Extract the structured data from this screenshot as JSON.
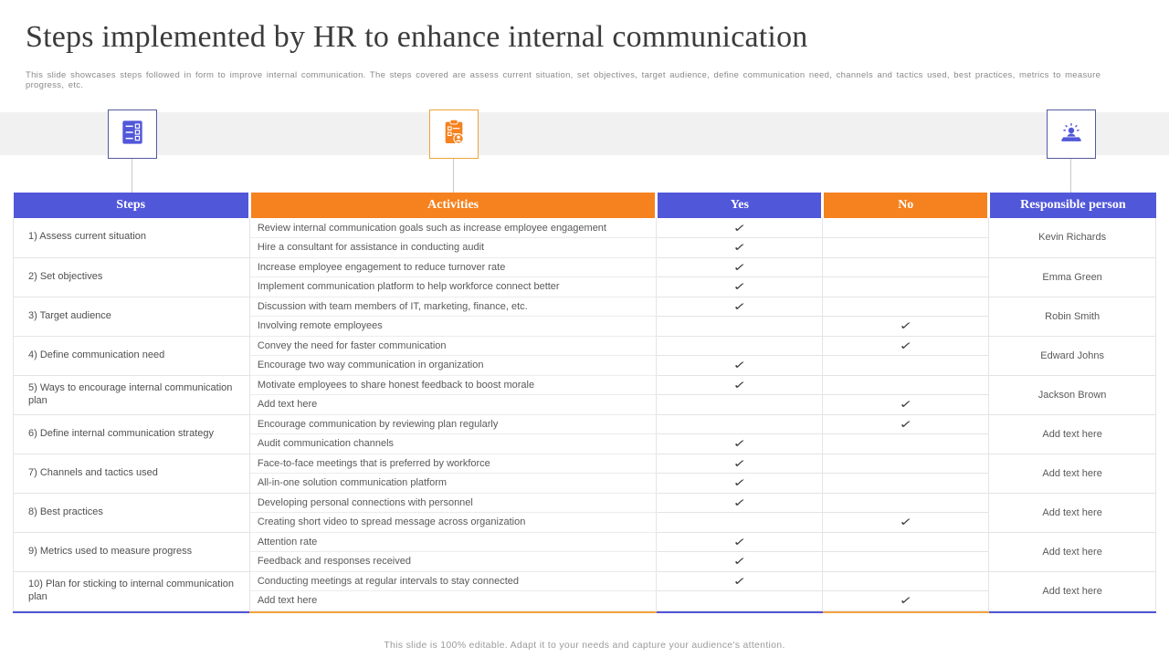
{
  "slide": {
    "title": "Steps implemented by HR to enhance internal communication",
    "subtitle": "This slide showcases steps followed in form to improve internal communication. The steps covered are assess current situation, set objectives, target audience, define communication need, channels and tactics used, best practices, metrics to measure progress, etc.",
    "footer": "This slide is 100% editable. Adapt it to your needs and capture your audience's attention."
  },
  "colors": {
    "purple": "#5157d9",
    "orange": "#f5821f",
    "band_gray": "#f1f1f2",
    "check": "#3d3d3d",
    "stripe_orange": "#f5a23f"
  },
  "icons": [
    {
      "name": "checklist-icon",
      "color": "purple"
    },
    {
      "name": "clipboard-user-icon",
      "color": "orange"
    },
    {
      "name": "presenter-alert-icon",
      "color": "purple"
    }
  ],
  "table": {
    "headers": [
      "Steps",
      "Activities",
      "Yes",
      "No",
      "Responsible person"
    ],
    "check_glyph": "✓",
    "rows": [
      {
        "step": "1) Assess current situation",
        "person": "Kevin Richards",
        "activities": [
          {
            "text": "Review internal communication goals such as increase employee engagement",
            "answer": "yes"
          },
          {
            "text": "Hire a consultant for assistance in conducting audit",
            "answer": "yes"
          }
        ]
      },
      {
        "step": "2) Set objectives",
        "person": "Emma Green",
        "activities": [
          {
            "text": "Increase employee engagement to reduce turnover rate",
            "answer": "yes"
          },
          {
            "text": "Implement communication platform to help workforce connect better",
            "answer": "yes"
          }
        ]
      },
      {
        "step": "3) Target audience",
        "person": "Robin Smith",
        "activities": [
          {
            "text": "Discussion with team members of IT,  marketing, finance, etc.",
            "answer": "yes"
          },
          {
            "text": "Involving remote employees",
            "answer": "no"
          }
        ]
      },
      {
        "step": "4) Define communication need",
        "person": "Edward Johns",
        "activities": [
          {
            "text": "Convey the need for faster communication",
            "answer": "no"
          },
          {
            "text": "Encourage two way communication in organization",
            "answer": "yes"
          }
        ]
      },
      {
        "step": "5) Ways to encourage internal communication plan",
        "person": "Jackson Brown",
        "activities": [
          {
            "text": "Motivate employees to share honest feedback to boost morale",
            "answer": "yes"
          },
          {
            "text": "Add text here",
            "answer": "no"
          }
        ]
      },
      {
        "step": "6) Define internal communication strategy",
        "person": "Add text here",
        "activities": [
          {
            "text": "Encourage communication by reviewing plan regularly",
            "answer": "no"
          },
          {
            "text": "Audit communication channels",
            "answer": "yes"
          }
        ]
      },
      {
        "step": "7) Channels and tactics used",
        "person": "Add text here",
        "activities": [
          {
            "text": "Face-to-face meetings that is preferred by workforce",
            "answer": "yes"
          },
          {
            "text": "All-in-one solution communication platform",
            "answer": "yes"
          }
        ]
      },
      {
        "step": "8) Best practices",
        "person": "Add text here",
        "activities": [
          {
            "text": "Developing personal connections with personnel",
            "answer": "yes"
          },
          {
            "text": "Creating short video to spread message across organization",
            "answer": "no"
          }
        ]
      },
      {
        "step": "9) Metrics used to measure progress",
        "person": "Add text here",
        "activities": [
          {
            "text": "Attention rate",
            "answer": "yes"
          },
          {
            "text": "Feedback and responses received",
            "answer": "yes"
          }
        ]
      },
      {
        "step": "10) Plan for sticking to internal communication plan",
        "person": "Add text here",
        "activities": [
          {
            "text": "Conducting meetings at regular intervals to stay connected",
            "answer": "yes"
          },
          {
            "text": "Add text here",
            "answer": "no"
          }
        ]
      }
    ]
  }
}
